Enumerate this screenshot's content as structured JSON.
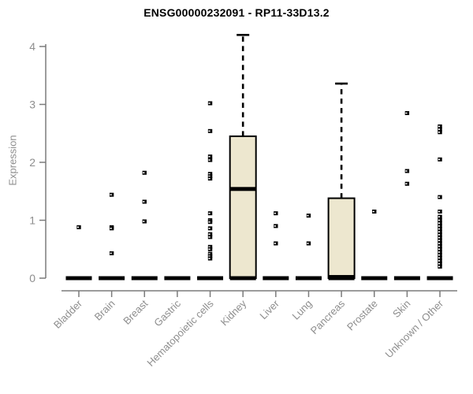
{
  "chart_data": {
    "type": "boxplot",
    "title": "ENSG00000232091 - RP11-33D13.2",
    "ylabel": "Expression",
    "ylim": [
      0,
      4
    ],
    "yticks": [
      0,
      1,
      2,
      3,
      4
    ],
    "grid": false,
    "categories": [
      "Bladder",
      "Brain",
      "Breast",
      "Gastric",
      "Hematopoietic cells",
      "Kidney",
      "Liver",
      "Lung",
      "Pancreas",
      "Prostate",
      "Skin",
      "Unknown / Other"
    ],
    "boxes": [
      {
        "category": "Bladder",
        "q1": 0,
        "median": 0,
        "q3": 0,
        "whisker_low": 0,
        "whisker_high": 0,
        "outliers": [
          0.88
        ]
      },
      {
        "category": "Brain",
        "q1": 0,
        "median": 0,
        "q3": 0,
        "whisker_low": 0,
        "whisker_high": 0,
        "outliers": [
          1.44,
          0.88,
          0.86,
          0.43
        ]
      },
      {
        "category": "Breast",
        "q1": 0,
        "median": 0,
        "q3": 0,
        "whisker_low": 0,
        "whisker_high": 0,
        "outliers": [
          1.82,
          1.32,
          0.98
        ]
      },
      {
        "category": "Gastric",
        "q1": 0,
        "median": 0,
        "q3": 0,
        "whisker_low": 0,
        "whisker_high": 0,
        "outliers": []
      },
      {
        "category": "Hematopoietic cells",
        "q1": 0,
        "median": 0,
        "q3": 0,
        "whisker_low": 0,
        "whisker_high": 0,
        "outliers": [
          3.02,
          2.54,
          2.1,
          2.04,
          1.8,
          1.76,
          1.72,
          1.12,
          1.0,
          0.97,
          0.86,
          0.76,
          0.71,
          0.54,
          0.5,
          0.42,
          0.38,
          0.34
        ]
      },
      {
        "category": "Kidney",
        "q1": 0,
        "median": 1.54,
        "q3": 2.45,
        "whisker_low": 0,
        "whisker_high": 4.2,
        "outliers": []
      },
      {
        "category": "Liver",
        "q1": 0,
        "median": 0,
        "q3": 0,
        "whisker_low": 0,
        "whisker_high": 0,
        "outliers": [
          1.12,
          0.9,
          0.6
        ]
      },
      {
        "category": "Lung",
        "q1": 0,
        "median": 0,
        "q3": 0,
        "whisker_low": 0,
        "whisker_high": 0,
        "outliers": [
          1.08,
          0.6
        ]
      },
      {
        "category": "Pancreas",
        "q1": 0,
        "median": 0.02,
        "q3": 1.38,
        "whisker_low": 0,
        "whisker_high": 3.36,
        "outliers": []
      },
      {
        "category": "Prostate",
        "q1": 0,
        "median": 0,
        "q3": 0,
        "whisker_low": 0,
        "whisker_high": 0,
        "outliers": [
          1.15
        ]
      },
      {
        "category": "Skin",
        "q1": 0,
        "median": 0,
        "q3": 0,
        "whisker_low": 0,
        "whisker_high": 0,
        "outliers": [
          2.85,
          1.85,
          1.63
        ]
      },
      {
        "category": "Unknown / Other",
        "q1": 0,
        "median": 0,
        "q3": 0,
        "whisker_low": 0,
        "whisker_high": 0,
        "outliers": [
          2.62,
          2.57,
          2.52,
          2.05,
          1.4,
          1.15,
          1.06,
          1.0,
          0.95,
          0.9,
          0.85,
          0.8,
          0.75,
          0.7,
          0.65,
          0.6,
          0.55,
          0.5,
          0.45,
          0.4,
          0.35,
          0.3,
          0.25,
          0.2
        ]
      }
    ],
    "colors": {
      "box_fill": "#EDE7CF",
      "box_border": "#000000",
      "whisker": "#000000",
      "outlier": "#000000",
      "axis": "#7b7b7b",
      "tick_text": "#8e8e8e",
      "title_text": "#000000"
    },
    "legend": null
  }
}
